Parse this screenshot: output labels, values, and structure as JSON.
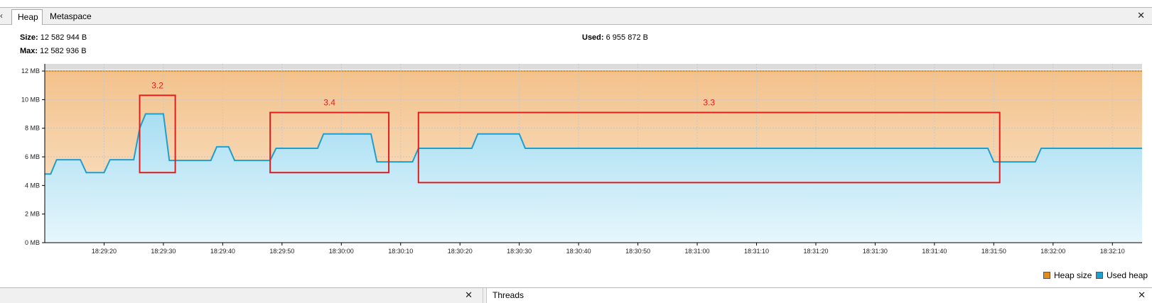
{
  "tabs": [
    {
      "label": "Heap",
      "active": true
    },
    {
      "label": "Metaspace",
      "active": false
    }
  ],
  "info": {
    "size_label": "Size:",
    "size_value": "12 582 944 B",
    "max_label": "Max:",
    "max_value": "12 582 936 B",
    "used_label": "Used:",
    "used_value": "6 955 872 B"
  },
  "chart_data": {
    "type": "area",
    "title": "",
    "xlabel": "",
    "ylabel": "",
    "y_unit": "MB",
    "ylim": [
      0,
      12.5
    ],
    "yticks": [
      0,
      2,
      4,
      6,
      8,
      10,
      12
    ],
    "ytick_labels": [
      "0 MB",
      "2 MB",
      "4 MB",
      "6 MB",
      "8 MB",
      "10 MB",
      "12 MB"
    ],
    "xlim": [
      "18:29:10",
      "18:32:15"
    ],
    "xticks": [
      "18:29:20",
      "18:29:30",
      "18:29:40",
      "18:29:50",
      "18:30:00",
      "18:30:10",
      "18:30:20",
      "18:30:30",
      "18:30:40",
      "18:30:50",
      "18:31:00",
      "18:31:10",
      "18:31:20",
      "18:31:30",
      "18:31:40",
      "18:31:50",
      "18:32:00",
      "18:32:10"
    ],
    "grid": true,
    "legend_position": "bottom-right",
    "series": [
      {
        "name": "Heap size",
        "color": "#e38a17",
        "fill_top": "#f3c28c",
        "fill_bottom": "#fbe7d0",
        "points": [
          [
            "18:29:10",
            12.0
          ],
          [
            "18:32:15",
            12.0
          ]
        ]
      },
      {
        "name": "Used heap",
        "color": "#1f9fd0",
        "fill_top": "#a8def2",
        "fill_bottom": "#e6f6fc",
        "points": [
          [
            "18:29:10",
            4.8
          ],
          [
            "18:29:11",
            4.8
          ],
          [
            "18:29:12",
            5.8
          ],
          [
            "18:29:16",
            5.8
          ],
          [
            "18:29:17",
            4.9
          ],
          [
            "18:29:20",
            4.9
          ],
          [
            "18:29:21",
            5.8
          ],
          [
            "18:29:25",
            5.8
          ],
          [
            "18:29:26",
            8.0
          ],
          [
            "18:29:27",
            9.0
          ],
          [
            "18:29:30",
            9.0
          ],
          [
            "18:29:31",
            5.75
          ],
          [
            "18:29:38",
            5.75
          ],
          [
            "18:29:39",
            6.7
          ],
          [
            "18:29:41",
            6.7
          ],
          [
            "18:29:42",
            5.75
          ],
          [
            "18:29:48",
            5.75
          ],
          [
            "18:29:49",
            6.6
          ],
          [
            "18:29:56",
            6.6
          ],
          [
            "18:29:57",
            7.6
          ],
          [
            "18:30:05",
            7.6
          ],
          [
            "18:30:06",
            5.65
          ],
          [
            "18:30:12",
            5.65
          ],
          [
            "18:30:13",
            6.6
          ],
          [
            "18:30:22",
            6.6
          ],
          [
            "18:30:23",
            7.6
          ],
          [
            "18:30:30",
            7.6
          ],
          [
            "18:30:31",
            6.6
          ],
          [
            "18:31:49",
            6.6
          ],
          [
            "18:31:50",
            5.65
          ],
          [
            "18:31:57",
            5.65
          ],
          [
            "18:31:58",
            6.6
          ],
          [
            "18:32:15",
            6.6
          ]
        ]
      }
    ],
    "annotations": [
      {
        "label": "3.2",
        "color": "#e01e1e",
        "x_from": "18:29:26",
        "x_to": "18:29:32",
        "y_from": 4.9,
        "y_to": 10.3
      },
      {
        "label": "3.4",
        "color": "#e01e1e",
        "x_from": "18:29:48",
        "x_to": "18:30:08",
        "y_from": 4.9,
        "y_to": 9.1
      },
      {
        "label": "3.3",
        "color": "#e01e1e",
        "x_from": "18:30:13",
        "x_to": "18:31:51",
        "y_from": 4.2,
        "y_to": 9.1
      }
    ]
  },
  "legend": {
    "heap_size": "Heap size",
    "used_heap": "Used heap"
  },
  "bottom": {
    "threads_title": "Threads"
  }
}
